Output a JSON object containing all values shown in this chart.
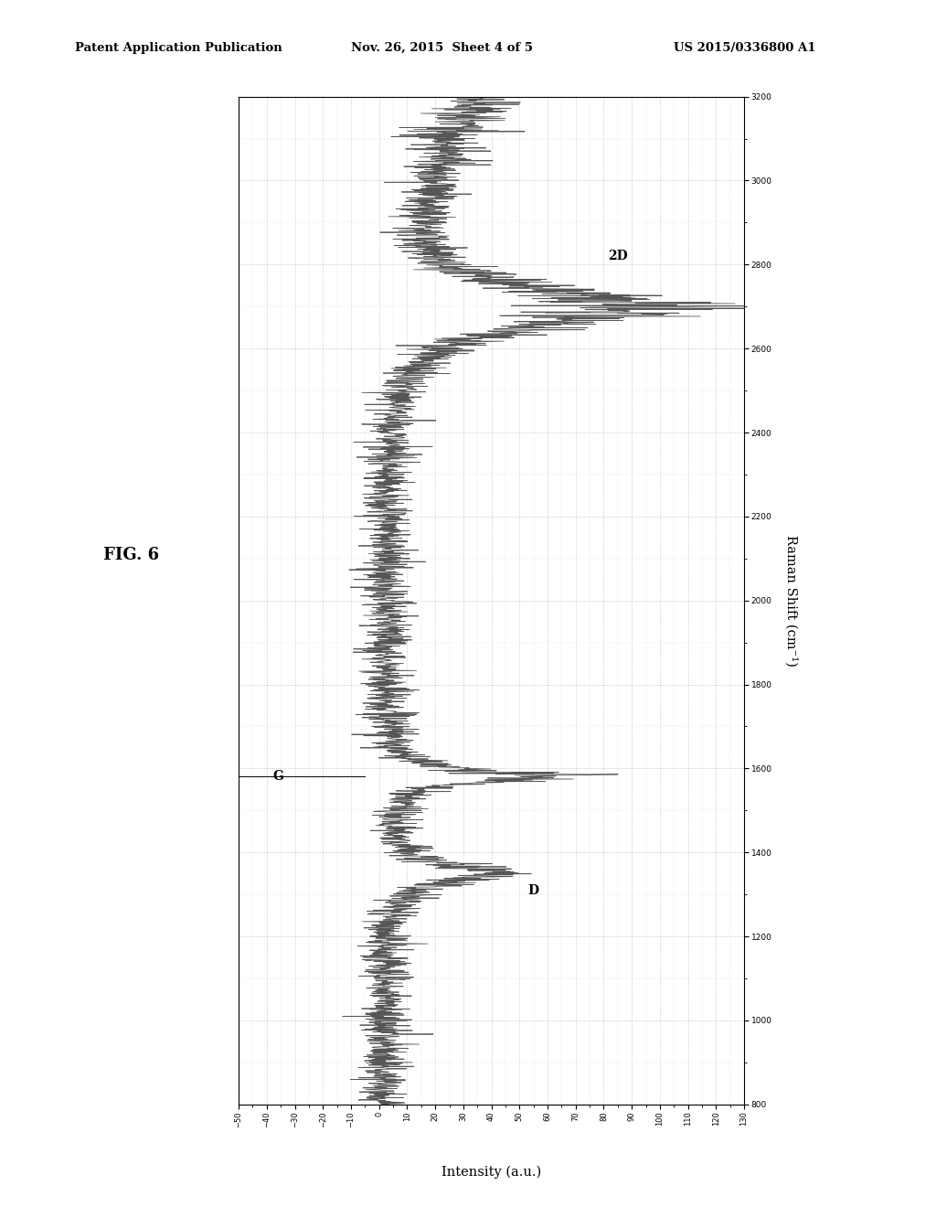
{
  "patent_header": "Patent Application Publication",
  "patent_date": "Nov. 26, 2015  Sheet 4 of 5",
  "patent_number": "US 2015/0336800 A1",
  "fig_label": "FIG. 6",
  "xlabel": "Intensity (a.u.)",
  "ylabel": "Raman Shift (cm⁻¹)",
  "raman_min": 800,
  "raman_max": 3200,
  "intensity_min": -50,
  "intensity_max": 130,
  "background_color": "#ffffff",
  "grid_color": "#999999",
  "line_color": "#444444",
  "D_peak_raman": 1350,
  "G_peak_raman": 1582,
  "twod_peak_raman": 2700,
  "noise_seed": 42
}
